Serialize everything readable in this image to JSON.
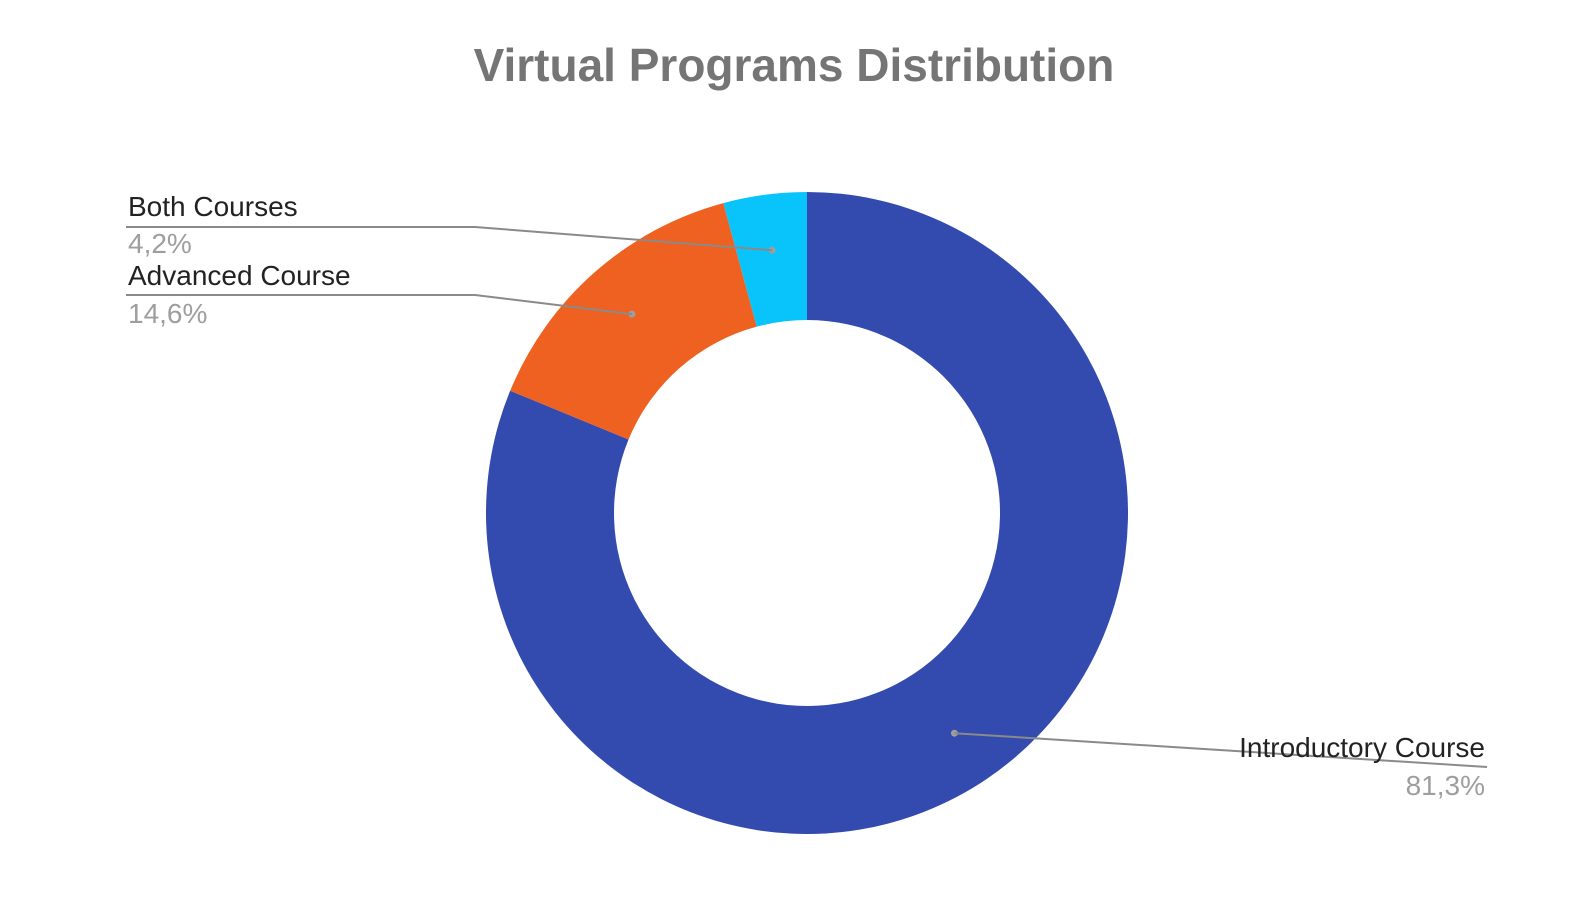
{
  "chart_data": {
    "type": "pie",
    "donut": true,
    "title": "Virtual Programs Distribution",
    "slices": [
      {
        "label": "Introductory Course",
        "value": 81.3,
        "display": "81,3%",
        "color": "#334aaf"
      },
      {
        "label": "Advanced Course",
        "value": 14.6,
        "display": "14,6%",
        "color": "#ee6120"
      },
      {
        "label": "Both Courses",
        "value": 4.2,
        "display": "4,2%",
        "color": "#08c4fb"
      }
    ],
    "legend": "none",
    "leader_line_color": "#8a8a8a"
  }
}
